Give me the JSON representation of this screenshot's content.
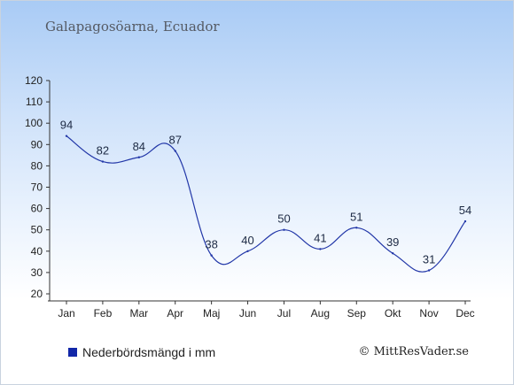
{
  "chart_data": {
    "type": "line",
    "title": "Galapagosöarna, Ecuador",
    "categories": [
      "Jan",
      "Feb",
      "Mar",
      "Apr",
      "Maj",
      "Jun",
      "Jul",
      "Aug",
      "Sep",
      "Okt",
      "Nov",
      "Dec"
    ],
    "series": [
      {
        "name": "Nederbördsmängd i mm",
        "values": [
          94,
          82,
          84,
          87,
          38,
          40,
          50,
          41,
          51,
          39,
          31,
          54
        ],
        "color": "#2237a8"
      }
    ],
    "xlabel": "",
    "ylabel": "",
    "ylim": [
      20,
      120
    ],
    "yticks": [
      20,
      30,
      40,
      50,
      60,
      70,
      80,
      90,
      100,
      110,
      120
    ],
    "grid": false,
    "legend": "bottom-left",
    "data_labels": true
  },
  "legend": {
    "label": "Nederbördsmängd i mm",
    "color": "#1227a8"
  },
  "credit": "© MittResVader.se"
}
